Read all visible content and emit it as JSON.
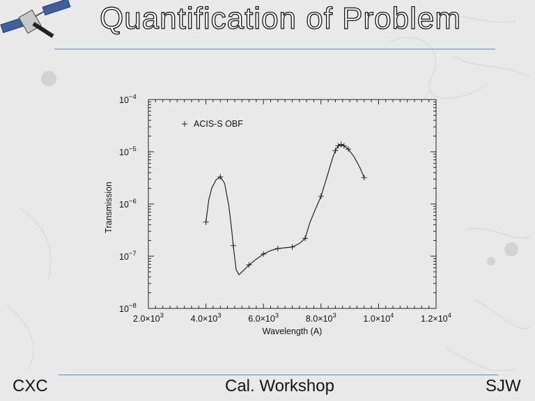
{
  "slide": {
    "title": "Quantification of Problem",
    "footer_left": "CXC",
    "footer_center": "Cal. Workshop",
    "footer_right": "SJW"
  },
  "colors": {
    "background": "#e9e9e9",
    "rule": "#6f89a8",
    "text": "#151515",
    "plot_line": "#222222"
  },
  "chart_data": {
    "type": "line",
    "xlabel": "Wavelength (A)",
    "ylabel": "Transmission",
    "xlim": [
      2000,
      12000
    ],
    "ylim": [
      1e-08,
      0.0001
    ],
    "yscale": "log",
    "grid": false,
    "legend": "top-left",
    "x_ticks": [
      {
        "value": 2000,
        "mantissa": "2.0×10",
        "exp": "3"
      },
      {
        "value": 4000,
        "mantissa": "4.0×10",
        "exp": "3"
      },
      {
        "value": 6000,
        "mantissa": "6.0×10",
        "exp": "3"
      },
      {
        "value": 8000,
        "mantissa": "8.0×10",
        "exp": "3"
      },
      {
        "value": 10000,
        "mantissa": "1.0×10",
        "exp": "4"
      },
      {
        "value": 12000,
        "mantissa": "1.2×10",
        "exp": "4"
      }
    ],
    "y_ticks": [
      {
        "value": 1e-08,
        "base": "10",
        "exp": "−8"
      },
      {
        "value": 1e-07,
        "base": "10",
        "exp": "−7"
      },
      {
        "value": 1e-06,
        "base": "10",
        "exp": "−6"
      },
      {
        "value": 1e-05,
        "base": "10",
        "exp": "−5"
      },
      {
        "value": 0.0001,
        "base": "10",
        "exp": "−4"
      }
    ],
    "series": [
      {
        "name": "ACIS-S OBF",
        "marker": "+",
        "points": [
          [
            4000,
            4.5e-07
          ],
          [
            4500,
            3.3e-06
          ],
          [
            4950,
            1.6e-07
          ],
          [
            5500,
            6.8e-08
          ],
          [
            6000,
            1.1e-07
          ],
          [
            6500,
            1.4e-07
          ],
          [
            7000,
            1.5e-07
          ],
          [
            7450,
            2.2e-07
          ],
          [
            8000,
            1.4e-06
          ],
          [
            8500,
            1.05e-05
          ],
          [
            8600,
            1.3e-05
          ],
          [
            8700,
            1.38e-05
          ],
          [
            8800,
            1.3e-05
          ],
          [
            8950,
            1.12e-05
          ],
          [
            9500,
            3.2e-06
          ]
        ],
        "curve": [
          [
            4000,
            4.5e-07
          ],
          [
            4100,
            1.2e-06
          ],
          [
            4200,
            2e-06
          ],
          [
            4350,
            2.9e-06
          ],
          [
            4500,
            3.3e-06
          ],
          [
            4650,
            2.5e-06
          ],
          [
            4800,
            9e-07
          ],
          [
            4900,
            3e-07
          ],
          [
            4950,
            1.6e-07
          ],
          [
            5050,
            5.5e-08
          ],
          [
            5150,
            4.4e-08
          ],
          [
            5300,
            5.3e-08
          ],
          [
            5500,
            6.8e-08
          ],
          [
            5750,
            8.8e-08
          ],
          [
            6000,
            1.1e-07
          ],
          [
            6250,
            1.28e-07
          ],
          [
            6500,
            1.4e-07
          ],
          [
            6750,
            1.45e-07
          ],
          [
            7000,
            1.5e-07
          ],
          [
            7250,
            1.75e-07
          ],
          [
            7450,
            2.2e-07
          ],
          [
            7600,
            4.2e-07
          ],
          [
            7800,
            7.8e-07
          ],
          [
            8000,
            1.4e-06
          ],
          [
            8200,
            3.2e-06
          ],
          [
            8400,
            7.5e-06
          ],
          [
            8500,
            1.05e-05
          ],
          [
            8600,
            1.3e-05
          ],
          [
            8700,
            1.38e-05
          ],
          [
            8800,
            1.3e-05
          ],
          [
            8950,
            1.12e-05
          ],
          [
            9150,
            8e-06
          ],
          [
            9350,
            5e-06
          ],
          [
            9500,
            3.2e-06
          ]
        ]
      }
    ]
  }
}
